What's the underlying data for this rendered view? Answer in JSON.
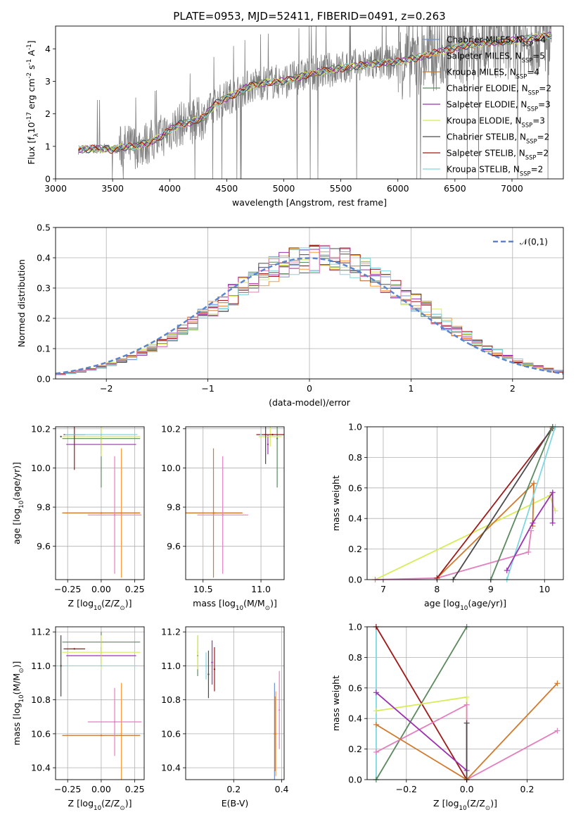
{
  "title": "PLATE=0953, MJD=52411, FIBERID=0491, z=0.263",
  "colors": {
    "data": "#808080",
    "Chabrier MILES": "#6f94d8",
    "Salpeter MILES": "#ff9a3d",
    "Kroupa MILES": "#d2792c",
    "Chabrier ELODIE": "#5b8a5f",
    "Salpeter ELODIE": "#9b31b0",
    "Kroupa ELODIE": "#d7ec56",
    "Chabrier STELIB": "#4a4a4a",
    "Salpeter STELIB": "#a01818",
    "Kroupa STELIB": "#7fd8e0",
    "pink": "#e47fbe",
    "normal": "#5b86cf"
  },
  "chart_data": [
    {
      "type": "line",
      "id": "spectrum",
      "xlabel": "wavelength [Angstrom, rest frame]",
      "ylabel": "Flux [f$_\\lambda$10$^{-17}$ erg cm$^{-2}$ s$^{-1}$ A$^{-1}$]",
      "xlim": [
        3000,
        7450
      ],
      "ylim": [
        0,
        4.7
      ],
      "xticks": [
        3000,
        3500,
        4000,
        4500,
        5000,
        5500,
        6000,
        6500,
        7000
      ],
      "yticks": [
        0,
        1,
        2,
        3,
        4
      ],
      "legend_position": "upper right",
      "legend": [
        {
          "label": "Chabrier MILES",
          "nssp": "4"
        },
        {
          "label": "Salpeter MILES",
          "nssp": "5"
        },
        {
          "label": "Kroupa MILES",
          "nssp": "4"
        },
        {
          "label": "Chabrier ELODIE",
          "nssp": "2"
        },
        {
          "label": "Salpeter ELODIE",
          "nssp": "3"
        },
        {
          "label": "Kroupa ELODIE",
          "nssp": "3"
        },
        {
          "label": "Chabrier STELIB",
          "nssp": "2"
        },
        {
          "label": "Salpeter STELIB",
          "nssp": "2"
        },
        {
          "label": "Kroupa STELIB",
          "nssp": "2"
        }
      ],
      "model_continuum": {
        "x": [
          3200,
          3300,
          3400,
          3500,
          3600,
          3700,
          3800,
          3900,
          4000,
          4100,
          4200,
          4300,
          4400,
          4500,
          4600,
          4700,
          4800,
          4900,
          5000,
          5200,
          5400,
          5600,
          5800,
          6000,
          6200,
          6400,
          6600,
          6800,
          7000,
          7200,
          7350
        ],
        "y": [
          0.9,
          0.92,
          0.93,
          0.9,
          0.98,
          1.0,
          1.1,
          1.25,
          1.5,
          1.7,
          1.75,
          1.9,
          2.3,
          2.5,
          2.65,
          2.85,
          2.95,
          2.98,
          3.0,
          3.2,
          3.35,
          3.45,
          3.55,
          3.6,
          3.75,
          3.95,
          4.1,
          4.2,
          4.25,
          4.35,
          4.4
        ]
      }
    },
    {
      "type": "line",
      "id": "residuals",
      "xlabel": "(data-model)/error",
      "ylabel": "Normed distribution",
      "xlim": [
        -2.5,
        2.5
      ],
      "ylim": [
        0,
        0.5
      ],
      "xticks": [
        -2,
        -1,
        0,
        1,
        2
      ],
      "yticks": [
        0.0,
        0.1,
        0.2,
        0.3,
        0.4,
        0.5
      ],
      "legend": [
        "$\\mathcal{N}(0,1)$"
      ],
      "legend_position": "upper right",
      "normal_curve": {
        "mean": 0,
        "sigma": 1
      }
    },
    {
      "type": "scatter",
      "id": "z-age",
      "xlabel": "Z [log$_{10}$($Z/Z_\\odot$)]",
      "ylabel": "age  [log$_{10}$($age/yr$)]",
      "xlim": [
        -0.34,
        0.32
      ],
      "ylim": [
        9.43,
        10.21
      ],
      "xticks": [
        -0.25,
        0.0,
        0.25
      ],
      "yticks": [
        9.6,
        9.8,
        10.0,
        10.2
      ],
      "points": [
        {
          "c": "Chabrier MILES",
          "x": 0.0,
          "y": 9.77,
          "xerr": 0.29,
          "yerr": 0.0
        },
        {
          "c": "Salpeter MILES",
          "x": 0.15,
          "y": 9.77,
          "xerr": 0.14,
          "yerr": 0.33
        },
        {
          "c": "Kroupa MILES",
          "x": 0.0,
          "y": 9.77,
          "xerr": 0.29,
          "yerr": 0.0
        },
        {
          "c": "Chabrier ELODIE",
          "x": 0.0,
          "y": 10.15,
          "xerr": 0.29,
          "yerr": 0.25
        },
        {
          "c": "Salpeter ELODIE",
          "x": 0.0,
          "y": 10.12,
          "xerr": 0.26,
          "yerr": 0.05
        },
        {
          "c": "Kroupa ELODIE",
          "x": 0.0,
          "y": 10.16,
          "xerr": 0.29,
          "yerr": 0.1
        },
        {
          "c": "Chabrier STELIB",
          "x": -0.3,
          "y": 10.16,
          "xerr": 0.0,
          "yerr": 0.0
        },
        {
          "c": "Salpeter STELIB",
          "x": -0.2,
          "y": 10.17,
          "xerr": 0.08,
          "yerr": 0.18
        },
        {
          "c": "Kroupa STELIB",
          "x": 0.0,
          "y": 10.17,
          "xerr": 0.27,
          "yerr": 0.0
        },
        {
          "c": "pink",
          "x": 0.1,
          "y": 9.76,
          "xerr": 0.2,
          "yerr": 0.3
        }
      ]
    },
    {
      "type": "scatter",
      "id": "mass-age",
      "xlabel": "mass [log$_{10}$($M/M_\\odot$)]",
      "ylabel": "",
      "xlim": [
        10.35,
        11.2
      ],
      "ylim": [
        9.43,
        10.21
      ],
      "xticks": [
        10.5,
        11.0
      ],
      "yticks": [
        9.6,
        9.8,
        10.0,
        10.2
      ],
      "points": [
        {
          "c": "Chabrier MILES",
          "x": 10.59,
          "y": 9.77,
          "xerr": 0.25,
          "yerr": 0.0
        },
        {
          "c": "Salpeter MILES",
          "x": 10.6,
          "y": 9.77,
          "xerr": 0.0,
          "yerr": 0.0
        },
        {
          "c": "Kroupa MILES",
          "x": 10.59,
          "y": 9.77,
          "xerr": 0.25,
          "yerr": 0.33
        },
        {
          "c": "Chabrier ELODIE",
          "x": 11.14,
          "y": 10.15,
          "xerr": 0.0,
          "yerr": 0.25
        },
        {
          "c": "Salpeter ELODIE",
          "x": 11.06,
          "y": 10.12,
          "xerr": 0.0,
          "yerr": 0.05
        },
        {
          "c": "Kroupa ELODIE",
          "x": 11.08,
          "y": 10.16,
          "xerr": 0.1,
          "yerr": 0.05
        },
        {
          "c": "Chabrier STELIB",
          "x": 11.04,
          "y": 10.17,
          "xerr": 0.0,
          "yerr": 0.15
        },
        {
          "c": "Salpeter STELIB",
          "x": 11.1,
          "y": 10.17,
          "xerr": 0.14,
          "yerr": 0.0
        },
        {
          "c": "Kroupa STELIB",
          "x": 11.0,
          "y": 10.17,
          "xerr": 0.0,
          "yerr": 0.0
        },
        {
          "c": "pink",
          "x": 10.67,
          "y": 9.76,
          "xerr": 0.22,
          "yerr": 0.3
        }
      ]
    },
    {
      "type": "line",
      "id": "age-weight",
      "xlabel": "age  [log$_{10}$($age/yr$)]",
      "ylabel": "mass weight",
      "xlim": [
        6.7,
        10.35
      ],
      "ylim": [
        0,
        1
      ],
      "xticks": [
        7,
        8,
        9,
        10
      ],
      "yticks": [
        0.0,
        0.2,
        0.4,
        0.6,
        0.8,
        1.0
      ],
      "series": [
        {
          "c": "Kroupa ELODIE",
          "x": [
            6.85,
            10.1,
            10.2
          ],
          "y": [
            0.0,
            0.55,
            0.45
          ]
        },
        {
          "c": "pink",
          "x": [
            6.85,
            8.0,
            9.7,
            9.75
          ],
          "y": [
            0.0,
            0.01,
            0.18,
            0.32
          ]
        },
        {
          "c": "Kroupa MILES",
          "x": [
            8.0,
            9.8,
            9.78
          ],
          "y": [
            0.01,
            0.63,
            0.35
          ]
        },
        {
          "c": "Salpeter STELIB",
          "x": [
            8.0,
            10.15
          ],
          "y": [
            0.01,
            0.99
          ]
        },
        {
          "c": "Chabrier STELIB",
          "x": [
            8.3,
            10.15
          ],
          "y": [
            0.0,
            1.0
          ]
        },
        {
          "c": "Chabrier ELODIE",
          "x": [
            9.0,
            10.15
          ],
          "y": [
            0.0,
            1.0
          ]
        },
        {
          "c": "Kroupa STELIB",
          "x": [
            9.3,
            10.2
          ],
          "y": [
            0.0,
            1.0
          ]
        },
        {
          "c": "Salpeter ELODIE",
          "x": [
            9.3,
            9.78,
            10.15,
            10.15
          ],
          "y": [
            0.06,
            0.37,
            0.57,
            0.37
          ]
        }
      ]
    },
    {
      "type": "scatter",
      "id": "z-mass",
      "xlabel": "Z [log$_{10}$($Z/Z_\\odot$)]",
      "ylabel": "mass [log$_{10}$($M/M_\\odot$)]",
      "xlim": [
        -0.34,
        0.32
      ],
      "ylim": [
        10.33,
        11.23
      ],
      "xticks": [
        -0.25,
        0.0,
        0.25
      ],
      "yticks": [
        10.4,
        10.6,
        10.8,
        11.0,
        11.2
      ],
      "points": [
        {
          "c": "Chabrier MILES",
          "x": 0.0,
          "y": 10.59,
          "xerr": 0.29,
          "yerr": 0.0
        },
        {
          "c": "Salpeter MILES",
          "x": 0.15,
          "y": 10.6,
          "xerr": 0.0,
          "yerr": 0.3
        },
        {
          "c": "Kroupa MILES",
          "x": 0.0,
          "y": 10.59,
          "xerr": 0.29,
          "yerr": 0.0
        },
        {
          "c": "Chabrier ELODIE",
          "x": 0.0,
          "y": 11.14,
          "xerr": 0.29,
          "yerr": 0.06
        },
        {
          "c": "Salpeter ELODIE",
          "x": 0.0,
          "y": 11.06,
          "xerr": 0.26,
          "yerr": 0.05
        },
        {
          "c": "Kroupa ELODIE",
          "x": 0.0,
          "y": 11.08,
          "xerr": 0.29,
          "yerr": 0.1
        },
        {
          "c": "Chabrier STELIB",
          "x": -0.3,
          "y": 11.0,
          "xerr": 0.0,
          "yerr": 0.18
        },
        {
          "c": "Salpeter STELIB",
          "x": -0.2,
          "y": 11.1,
          "xerr": 0.08,
          "yerr": 0.0
        },
        {
          "c": "Kroupa STELIB",
          "x": 0.0,
          "y": 11.0,
          "xerr": 0.27,
          "yerr": 0.0
        },
        {
          "c": "pink",
          "x": 0.1,
          "y": 10.67,
          "xerr": 0.2,
          "yerr": 0.2
        }
      ]
    },
    {
      "type": "scatter",
      "id": "ebv-mass",
      "xlabel": "E(B-V)",
      "ylabel": "",
      "xlim": [
        0.0,
        0.41
      ],
      "ylim": [
        10.33,
        11.23
      ],
      "xticks": [
        0.2,
        0.4
      ],
      "yticks": [
        10.4,
        10.6,
        10.8,
        11.0,
        11.2
      ],
      "points": [
        {
          "c": "Chabrier MILES",
          "x": 0.37,
          "y": 10.6,
          "xerr": 0.0,
          "yerr": 0.3
        },
        {
          "c": "Salpeter MILES",
          "x": 0.375,
          "y": 10.6,
          "xerr": 0.0,
          "yerr": 0.25
        },
        {
          "c": "Kroupa MILES",
          "x": 0.372,
          "y": 10.6,
          "xerr": 0.0,
          "yerr": 0.22
        },
        {
          "c": "Chabrier ELODIE",
          "x": 0.05,
          "y": 11.06,
          "xerr": 0.0,
          "yerr": 0.12
        },
        {
          "c": "Salpeter ELODIE",
          "x": 0.11,
          "y": 11.02,
          "xerr": 0.0,
          "yerr": 0.13
        },
        {
          "c": "Kroupa ELODIE",
          "x": 0.05,
          "y": 11.08,
          "xerr": 0.0,
          "yerr": 0.1
        },
        {
          "c": "Chabrier STELIB",
          "x": 0.095,
          "y": 10.95,
          "xerr": 0.0,
          "yerr": 0.14
        },
        {
          "c": "Salpeter STELIB",
          "x": 0.12,
          "y": 10.98,
          "xerr": 0.0,
          "yerr": 0.13
        },
        {
          "c": "Kroupa STELIB",
          "x": 0.085,
          "y": 11.0,
          "xerr": 0.0,
          "yerr": 0.08
        },
        {
          "c": "pink",
          "x": 0.39,
          "y": 10.74,
          "xerr": 0.0,
          "yerr": 0.23
        }
      ]
    },
    {
      "type": "line",
      "id": "z-weight",
      "xlabel": "Z [log$_{10}$($Z/Z_\\odot$)]",
      "ylabel": "mass weight",
      "xlim": [
        -0.33,
        0.32
      ],
      "ylim": [
        0,
        1
      ],
      "xticks": [
        -0.2,
        0.0,
        0.2
      ],
      "yticks": [
        0.0,
        0.2,
        0.4,
        0.6,
        0.8,
        1.0
      ],
      "series": [
        {
          "c": "Kroupa STELIB",
          "x": [
            -0.3,
            -0.3
          ],
          "y": [
            0.0,
            1.0
          ]
        },
        {
          "c": "Chabrier ELODIE",
          "x": [
            -0.3,
            0.0
          ],
          "y": [
            0.0,
            1.0
          ]
        },
        {
          "c": "Salpeter STELIB",
          "x": [
            -0.3,
            0.0
          ],
          "y": [
            1.0,
            0.0
          ]
        },
        {
          "c": "Kroupa ELODIE",
          "x": [
            -0.3,
            0.0,
            0.0
          ],
          "y": [
            0.45,
            0.54,
            0.0
          ]
        },
        {
          "c": "pink",
          "x": [
            -0.3,
            0.0,
            0.0,
            0.3
          ],
          "y": [
            0.18,
            0.49,
            0.0,
            0.32
          ]
        },
        {
          "c": "Salpeter ELODIE",
          "x": [
            -0.3,
            0.0
          ],
          "y": [
            0.57,
            0.06
          ]
        },
        {
          "c": "Kroupa MILES",
          "x": [
            -0.3,
            0.0,
            0.3
          ],
          "y": [
            0.36,
            0.0,
            0.63
          ]
        },
        {
          "c": "Chabrier STELIB",
          "x": [
            0.0,
            0.0
          ],
          "y": [
            0.37,
            0.0
          ]
        }
      ]
    }
  ]
}
